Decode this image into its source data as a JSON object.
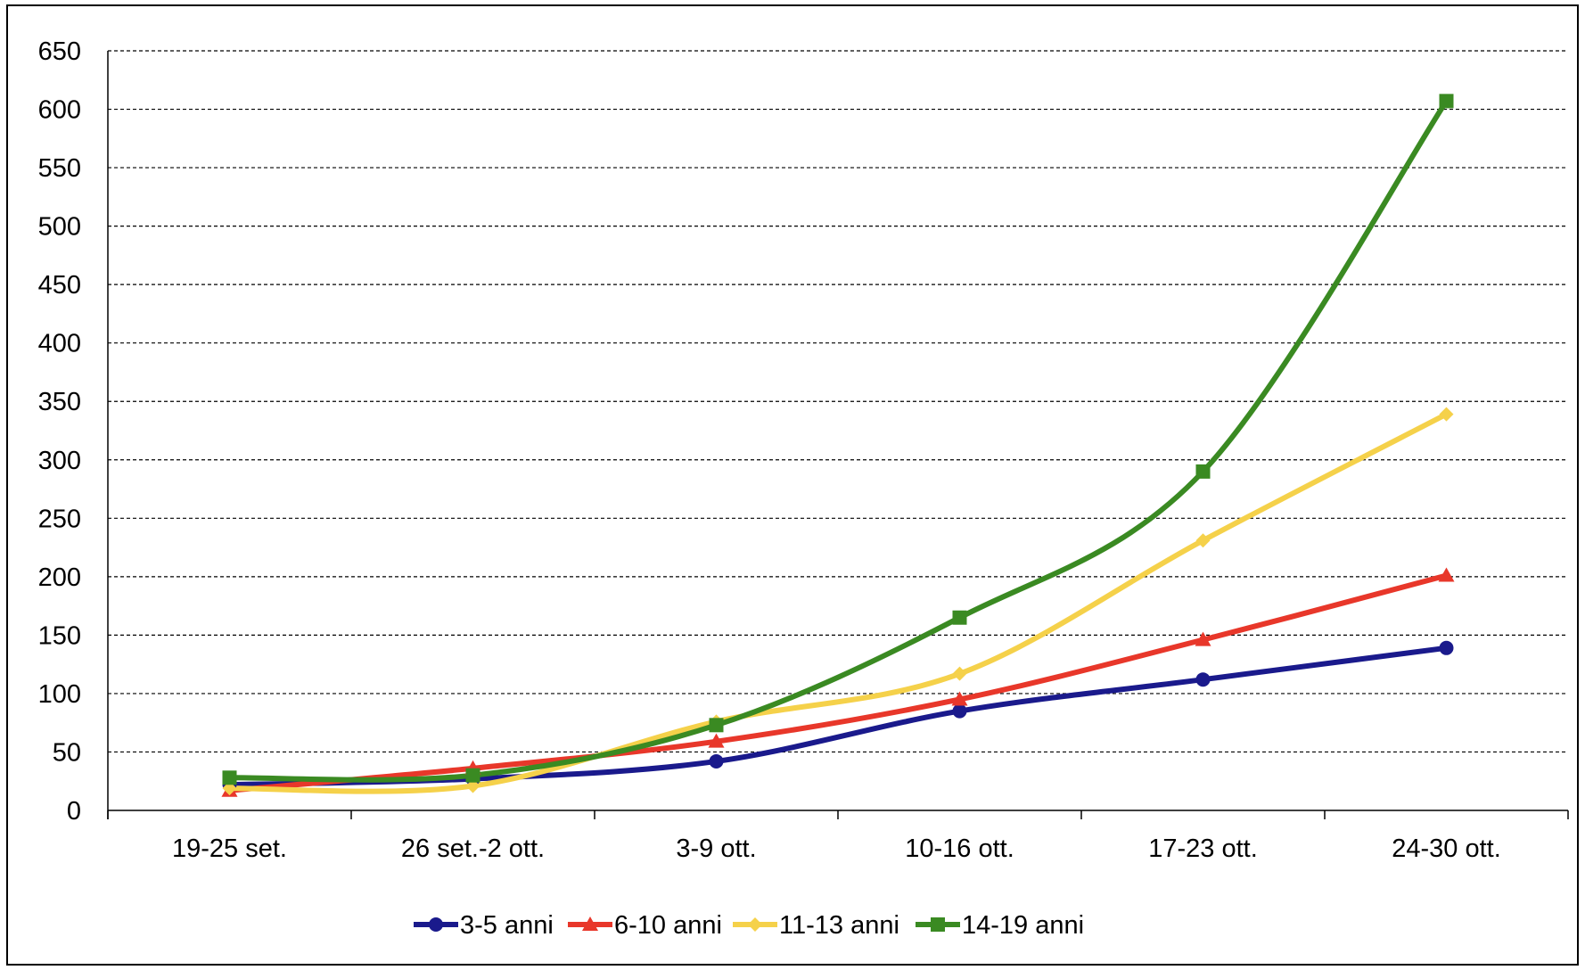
{
  "chart_data": {
    "type": "line",
    "title": "",
    "xlabel": "",
    "ylabel": "",
    "categories": [
      "19-25 set.",
      "26 set.-2 ott.",
      "3-9 ott.",
      "10-16 ott.",
      "17-23 ott.",
      "24-30 ott."
    ],
    "ylim": [
      0,
      650
    ],
    "yticks": [
      0,
      50,
      100,
      150,
      200,
      250,
      300,
      350,
      400,
      450,
      500,
      550,
      600,
      650
    ],
    "grid": "horizontal dashed",
    "smooth": true,
    "legend_position": "bottom",
    "series": [
      {
        "name": "3-5 anni",
        "color": "#1a1a8c",
        "marker": "circle",
        "values": [
          22,
          27,
          42,
          85,
          112,
          139
        ]
      },
      {
        "name": "6-10 anni",
        "color": "#e8372a",
        "marker": "triangle",
        "values": [
          17,
          36,
          59,
          95,
          146,
          201
        ]
      },
      {
        "name": "11-13 anni",
        "color": "#f5d14a",
        "marker": "diamond",
        "values": [
          19,
          21,
          76,
          117,
          231,
          339
        ]
      },
      {
        "name": "14-19 anni",
        "color": "#3a8a22",
        "marker": "square",
        "values": [
          28,
          30,
          73,
          165,
          290,
          607
        ]
      }
    ]
  }
}
